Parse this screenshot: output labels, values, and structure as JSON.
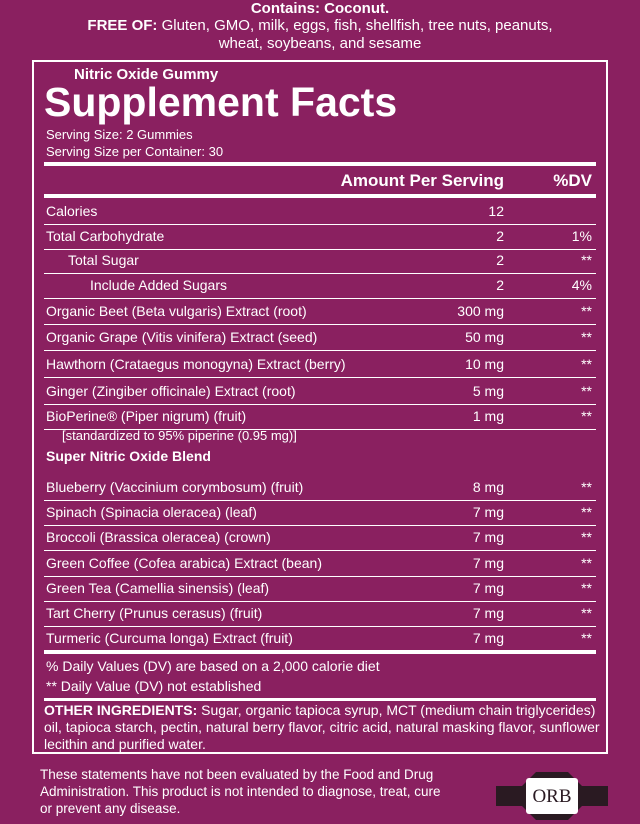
{
  "header": {
    "contains": "Contains: Coconut.",
    "free_of_label": "FREE OF:",
    "free_of_text": "Gluten, GMO, milk, eggs, fish, shellfish, tree nuts, peanuts, wheat, soybeans, and sesame"
  },
  "panel": {
    "subtitle": "Nitric Oxide Gummy",
    "title": "Supplement Facts",
    "serving_size": "Serving Size:  2 Gummies",
    "servings_per_container": "Serving Size per Container:  30",
    "columns": [
      "Amount Per Serving",
      "%DV"
    ],
    "rows": [
      [
        "Calories",
        "12"
      ],
      [
        "Total Carbohydrate",
        "2",
        "1%"
      ],
      [
        "Total Sugar",
        "2",
        "**"
      ],
      [
        "Include Added Sugars",
        "2",
        "4%"
      ],
      [
        "Organic Beet (Beta vulgaris) Extract (root)",
        "300 mg",
        "**"
      ],
      [
        "Organic Grape (Vitis vinifera) Extract (seed)",
        "50 mg",
        "**"
      ],
      [
        "Hawthorn (Crataegus monogyna) Extract (berry)",
        "10 mg",
        "**"
      ],
      [
        "Ginger (Zingiber officinale) Extract (root)",
        "5 mg",
        "**"
      ],
      [
        "BioPerine® (Piper nigrum) (fruit)",
        "1 mg",
        "**"
      ]
    ],
    "note": "[standardized to 95% piperine (0.95 mg)]",
    "blend_title": "Super Nitric Oxide Blend",
    "blend_rows": [
      [
        "Blueberry (Vaccinium corymbosum) (fruit)",
        "8 mg",
        "**"
      ],
      [
        "Spinach (Spinacia oleracea) (leaf)",
        "7 mg",
        "**"
      ],
      [
        "Broccoli (Brassica oleracea) (crown)",
        "7 mg",
        "**"
      ],
      [
        "Green Coffee (Cofea arabica) Extract (bean)",
        "7 mg",
        "**"
      ],
      [
        "Green Tea (Camellia sinensis) (leaf)",
        "7 mg",
        "**"
      ],
      [
        "Tart Cherry (Prunus cerasus) (fruit)",
        "7 mg",
        "**"
      ],
      [
        "Turmeric (Curcuma longa) Extract (fruit)",
        "7 mg",
        "**"
      ]
    ],
    "footnotes": [
      "% Daily Values (DV) are based on a 2,000 calorie diet",
      "** Daily Value (DV) not established"
    ],
    "other_label": "OTHER INGREDIENTS:",
    "other_text": "Sugar, organic tapioca syrup, MCT (medium chain triglycerides) oil, tapioca starch, pectin, natural berry flavor, citric acid, natural masking flavor, sunflower lecithin and purified water."
  },
  "disclaimer": "These statements have not been evaluated by the Food and Drug Administration. This product is not intended to diagnose, treat, cure or prevent any disease.",
  "logo": "ORB"
}
